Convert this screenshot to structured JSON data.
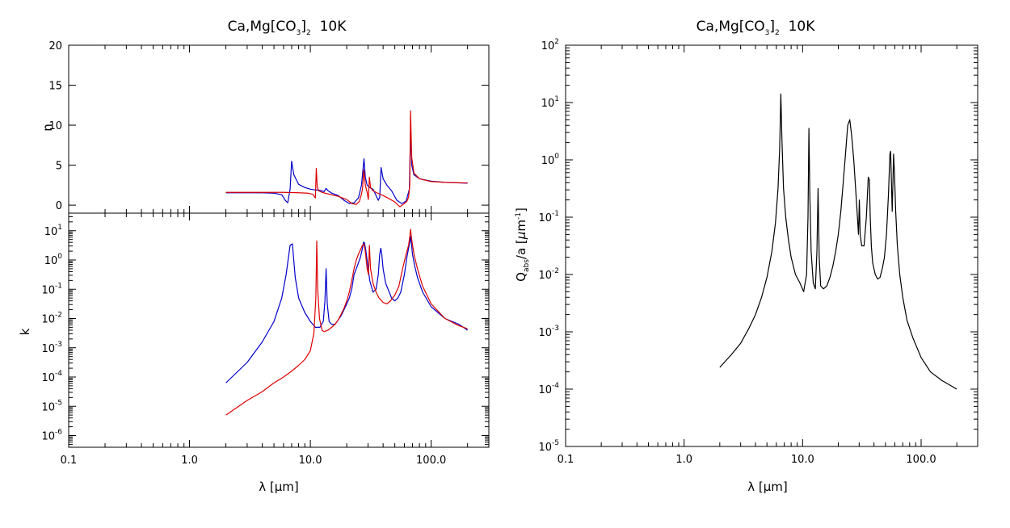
{
  "chart_data": [
    {
      "type": "line",
      "title": "Ca,Mg[CO3]2 10K",
      "title_parts": {
        "pre": "Ca,Mg[CO",
        "sub": "3",
        "post": "]",
        "sub2": "2",
        "tail": "  10K"
      },
      "x_scale": "log",
      "xlim": [
        0.1,
        300
      ],
      "xlabel": "λ [μm]",
      "x_ticks": [
        0.1,
        1.0,
        10.0,
        100.0
      ],
      "x_tick_labels": [
        "0.1",
        "1.0",
        "10.0",
        "100.0"
      ],
      "panels": [
        {
          "name": "n",
          "ylabel": "n",
          "y_scale": "linear",
          "ylim": [
            -1,
            20
          ],
          "y_ticks": [
            0,
            5,
            10,
            15,
            20
          ],
          "y_tick_labels": [
            "0",
            "5",
            "10",
            "15",
            "20"
          ],
          "series": [
            {
              "color": "#0000cc",
              "x": [
                2,
                3,
                4,
                5,
                5.8,
                6.2,
                6.5,
                6.8,
                7.0,
                7.3,
                8,
                9,
                10,
                11,
                12,
                13,
                13.5,
                14,
                15,
                17,
                19,
                21,
                23,
                25,
                26.5,
                27.8,
                28.5,
                29.5,
                31,
                33,
                35,
                36.5,
                37.5,
                38.5,
                40,
                43,
                47,
                52,
                57,
                62,
                66,
                67.5,
                69,
                72,
                80,
                100,
                130,
                170,
                200
              ],
              "y": [
                1.55,
                1.55,
                1.55,
                1.5,
                1.3,
                0.6,
                0.3,
                2.0,
                5.5,
                3.8,
                2.6,
                2.2,
                2.0,
                1.9,
                1.85,
                1.7,
                2.1,
                1.8,
                1.5,
                1.2,
                0.6,
                0.2,
                0.3,
                0.9,
                2.5,
                5.8,
                3.5,
                2.5,
                2.2,
                2.0,
                1.2,
                0.6,
                1.0,
                4.7,
                3.3,
                2.5,
                1.8,
                0.6,
                0.2,
                0.5,
                2.0,
                9.6,
                5.0,
                3.8,
                3.3,
                3.0,
                2.85,
                2.78,
                2.75
              ]
            },
            {
              "color": "#dd0000",
              "x": [
                2,
                4,
                6,
                8,
                9.5,
                10.5,
                11.0,
                11.2,
                11.4,
                11.7,
                12.5,
                14,
                17,
                20,
                22,
                24,
                25.5,
                26.5,
                27.0,
                27.7,
                28.5,
                29.5,
                30.2,
                30.8,
                31.5,
                33,
                36,
                40,
                45,
                50,
                55,
                60,
                63,
                65,
                66.5,
                67.5,
                69,
                72,
                80,
                100,
                130,
                170,
                200
              ],
              "y": [
                1.6,
                1.6,
                1.6,
                1.55,
                1.5,
                1.35,
                0.9,
                4.6,
                2.3,
                1.8,
                1.6,
                1.4,
                1.1,
                0.7,
                0.2,
                0.1,
                0.5,
                1.4,
                2.0,
                4.4,
                2.5,
                1.6,
                0.7,
                3.5,
                2.2,
                1.8,
                1.5,
                1.2,
                0.8,
                0.4,
                -0.2,
                0.2,
                0.5,
                1.0,
                2.5,
                11.8,
                6.0,
                4.0,
                3.3,
                2.95,
                2.85,
                2.8,
                2.78
              ]
            }
          ]
        },
        {
          "name": "k",
          "ylabel": "k",
          "y_scale": "log",
          "ylim_exp": [
            -6.4,
            1.6
          ],
          "y_ticks_exp": [
            1,
            0,
            -1,
            -2,
            -3,
            -4,
            -5,
            -6
          ],
          "y_tick_labels_exp": [
            "1",
            "0",
            "-1",
            "-2",
            "-3",
            "-4",
            "-5",
            "-6"
          ],
          "series": [
            {
              "color": "#0000cc",
              "x": [
                2,
                3,
                4,
                5,
                5.8,
                6.3,
                6.8,
                7.1,
                7.5,
                8,
                9,
                10,
                11,
                12,
                12.8,
                13.2,
                13.5,
                13.8,
                14.3,
                15,
                16,
                17,
                18,
                19,
                20,
                21,
                22,
                23,
                24,
                25,
                26,
                27,
                27.5,
                28,
                28.6,
                29.5,
                31,
                33,
                35,
                36.5,
                37.5,
                38.3,
                39,
                40,
                42,
                44,
                47,
                50,
                53,
                56,
                60,
                63,
                65,
                66.5,
                67.5,
                68.5,
                70,
                73,
                77,
                85,
                100,
                130,
                170,
                200
              ],
              "y_exp": [
                -4.2,
                -3.5,
                -2.8,
                -2.1,
                -1.3,
                -0.5,
                0.5,
                0.55,
                -0.6,
                -1.3,
                -1.8,
                -2.1,
                -2.3,
                -2.3,
                -2.1,
                -1.4,
                -0.3,
                -1.5,
                -2.1,
                -2.2,
                -2.2,
                -2.05,
                -1.9,
                -1.7,
                -1.5,
                -1.3,
                -1.0,
                -0.5,
                -0.3,
                -0.1,
                0.1,
                0.4,
                0.6,
                0.6,
                0.4,
                0.0,
                -0.7,
                -1.1,
                -1.0,
                -0.5,
                0.2,
                0.4,
                0.2,
                -0.3,
                -0.8,
                -1.0,
                -1.3,
                -1.4,
                -1.3,
                -1.1,
                -0.5,
                0.1,
                0.4,
                0.6,
                0.8,
                0.6,
                0.2,
                -0.2,
                -0.6,
                -1.1,
                -1.6,
                -2.0,
                -2.2,
                -2.4
              ]
            },
            {
              "color": "#dd0000",
              "x": [
                2,
                3,
                4,
                5,
                6,
                7,
                8,
                9,
                10,
                10.7,
                11.1,
                11.3,
                11.5,
                11.9,
                12.5,
                13,
                14,
                15,
                16,
                17,
                18,
                19,
                20,
                21,
                22,
                23,
                24,
                25,
                26,
                27,
                27.8,
                28.5,
                29.5,
                30.3,
                30.8,
                31.5,
                33,
                35,
                37,
                40,
                43,
                46,
                50,
                54,
                58,
                62,
                65,
                66.5,
                67.5,
                69,
                72,
                77,
                85,
                100,
                130,
                170,
                200
              ],
              "y_exp": [
                -5.3,
                -4.8,
                -4.5,
                -4.2,
                -4.0,
                -3.8,
                -3.6,
                -3.4,
                -3.1,
                -2.5,
                -1.3,
                0.65,
                -1.0,
                -2.0,
                -2.4,
                -2.45,
                -2.4,
                -2.3,
                -2.2,
                -2.05,
                -1.85,
                -1.65,
                -1.4,
                -1.1,
                -0.7,
                -0.3,
                0.0,
                0.2,
                0.35,
                0.5,
                0.55,
                0.3,
                -0.3,
                -0.5,
                0.5,
                -0.3,
                -0.8,
                -1.1,
                -1.3,
                -1.45,
                -1.5,
                -1.4,
                -1.2,
                -0.9,
                -0.3,
                0.2,
                0.5,
                0.8,
                1.05,
                0.7,
                0.2,
                -0.3,
                -0.9,
                -1.5,
                -2.0,
                -2.25,
                -2.35
              ]
            }
          ]
        }
      ]
    },
    {
      "type": "line",
      "title": "Ca,Mg[CO3]2 10K",
      "title_parts": {
        "pre": "Ca,Mg[CO",
        "sub": "3",
        "post": "]",
        "sub2": "2",
        "tail": "  10K"
      },
      "x_scale": "log",
      "xlim": [
        0.1,
        300
      ],
      "xlabel": "λ [μm]",
      "x_ticks": [
        0.1,
        1.0,
        10.0,
        100.0
      ],
      "x_tick_labels": [
        "0.1",
        "1.0",
        "10.0",
        "100.0"
      ],
      "ylabel": "Qabs/a [μm-1]",
      "ylabel_parts": {
        "Q": "Q",
        "sub": "abs",
        "mid": "/a [",
        "mu": "μ",
        "m": "m",
        "sup": "-1",
        "end": "]"
      },
      "y_scale": "log",
      "ylim_exp": [
        -5,
        2
      ],
      "y_ticks_exp": [
        2,
        1,
        0,
        -1,
        -2,
        -3,
        -4,
        -5
      ],
      "y_tick_labels_exp": [
        "2",
        "1",
        "0",
        "-1",
        "-2",
        "-3",
        "-4",
        "-5"
      ],
      "series": [
        {
          "color": "#000000",
          "x": [
            2,
            2.5,
            3,
            3.5,
            4,
            4.5,
            5,
            5.5,
            5.9,
            6.2,
            6.4,
            6.55,
            6.7,
            6.9,
            7.2,
            7.6,
            8,
            8.7,
            9.5,
            10.2,
            10.8,
            11.1,
            11.3,
            11.5,
            11.8,
            12.3,
            12.8,
            13.2,
            13.5,
            13.8,
            14.2,
            15,
            16,
            17,
            18,
            19,
            20,
            21,
            22,
            23,
            24,
            25,
            26,
            27,
            28,
            29,
            29.6,
            30.1,
            30.6,
            31.5,
            33,
            34.5,
            35.8,
            36.6,
            37.2,
            38,
            39,
            41,
            43,
            45,
            47,
            49,
            51,
            53,
            54.5,
            55.3,
            56,
            57,
            57.8,
            58.5,
            59.5,
            61,
            63,
            66,
            70,
            76,
            85,
            100,
            120,
            150,
            200
          ],
          "y_exp": [
            -3.62,
            -3.4,
            -3.2,
            -2.95,
            -2.7,
            -2.4,
            -2.05,
            -1.6,
            -1.1,
            -0.5,
            0.2,
            1.15,
            0.3,
            -0.5,
            -1.0,
            -1.4,
            -1.7,
            -2.0,
            -2.15,
            -2.3,
            -2.0,
            -1.0,
            0.55,
            -0.6,
            -1.6,
            -2.15,
            -2.25,
            -1.6,
            -0.5,
            -1.7,
            -2.2,
            -2.25,
            -2.2,
            -2.05,
            -1.85,
            -1.6,
            -1.3,
            -0.9,
            -0.4,
            0.1,
            0.6,
            0.7,
            0.4,
            0.0,
            -0.5,
            -1.0,
            -1.3,
            -0.7,
            -1.3,
            -1.5,
            -1.5,
            -1.0,
            -0.3,
            -0.35,
            -1.0,
            -1.5,
            -1.8,
            -2.0,
            -2.08,
            -2.05,
            -1.9,
            -1.7,
            -1.3,
            -0.6,
            0.1,
            0.15,
            -0.3,
            -0.9,
            -0.4,
            0.1,
            -0.2,
            -0.9,
            -1.5,
            -2.0,
            -2.4,
            -2.8,
            -3.1,
            -3.45,
            -3.7,
            -3.85,
            -4.0
          ]
        }
      ]
    }
  ]
}
